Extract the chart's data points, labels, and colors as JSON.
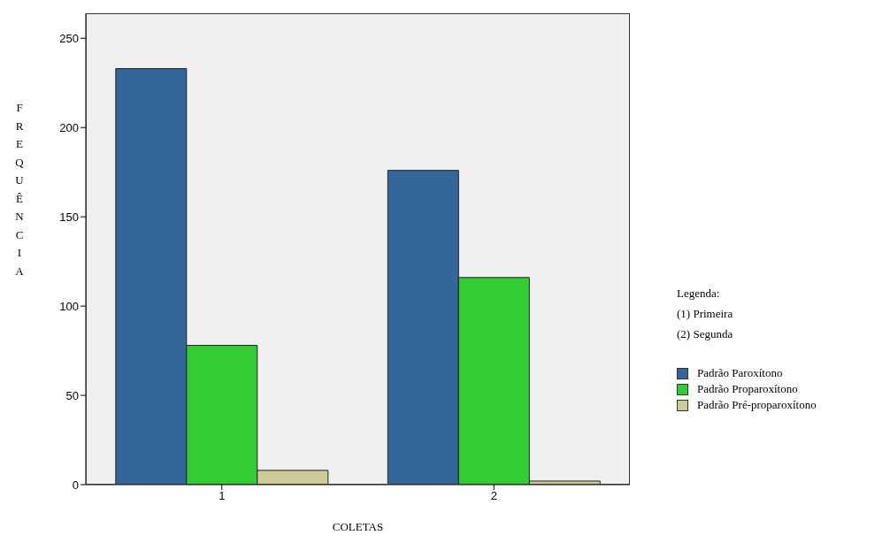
{
  "chart_data": {
    "type": "bar",
    "xlabel": "COLETAS",
    "ylabel": "FREQUÊNCIA",
    "categories": [
      "1",
      "2"
    ],
    "series": [
      {
        "name": "Padrão Paroxítono",
        "color": "#336699",
        "values": [
          233,
          176
        ]
      },
      {
        "name": "Padrão Proparoxítono",
        "color": "#33cc33",
        "values": [
          78,
          116
        ]
      },
      {
        "name": "Padrão Pré-proparoxítono",
        "color": "#cccc99",
        "values": [
          8,
          2
        ]
      }
    ],
    "ylim": [
      0,
      264
    ],
    "yticks": [
      0,
      50,
      100,
      150,
      200,
      250
    ],
    "legend": "right",
    "annotations": [
      "Legenda:",
      "(1) Primeira",
      "(2) Segunda"
    ]
  }
}
